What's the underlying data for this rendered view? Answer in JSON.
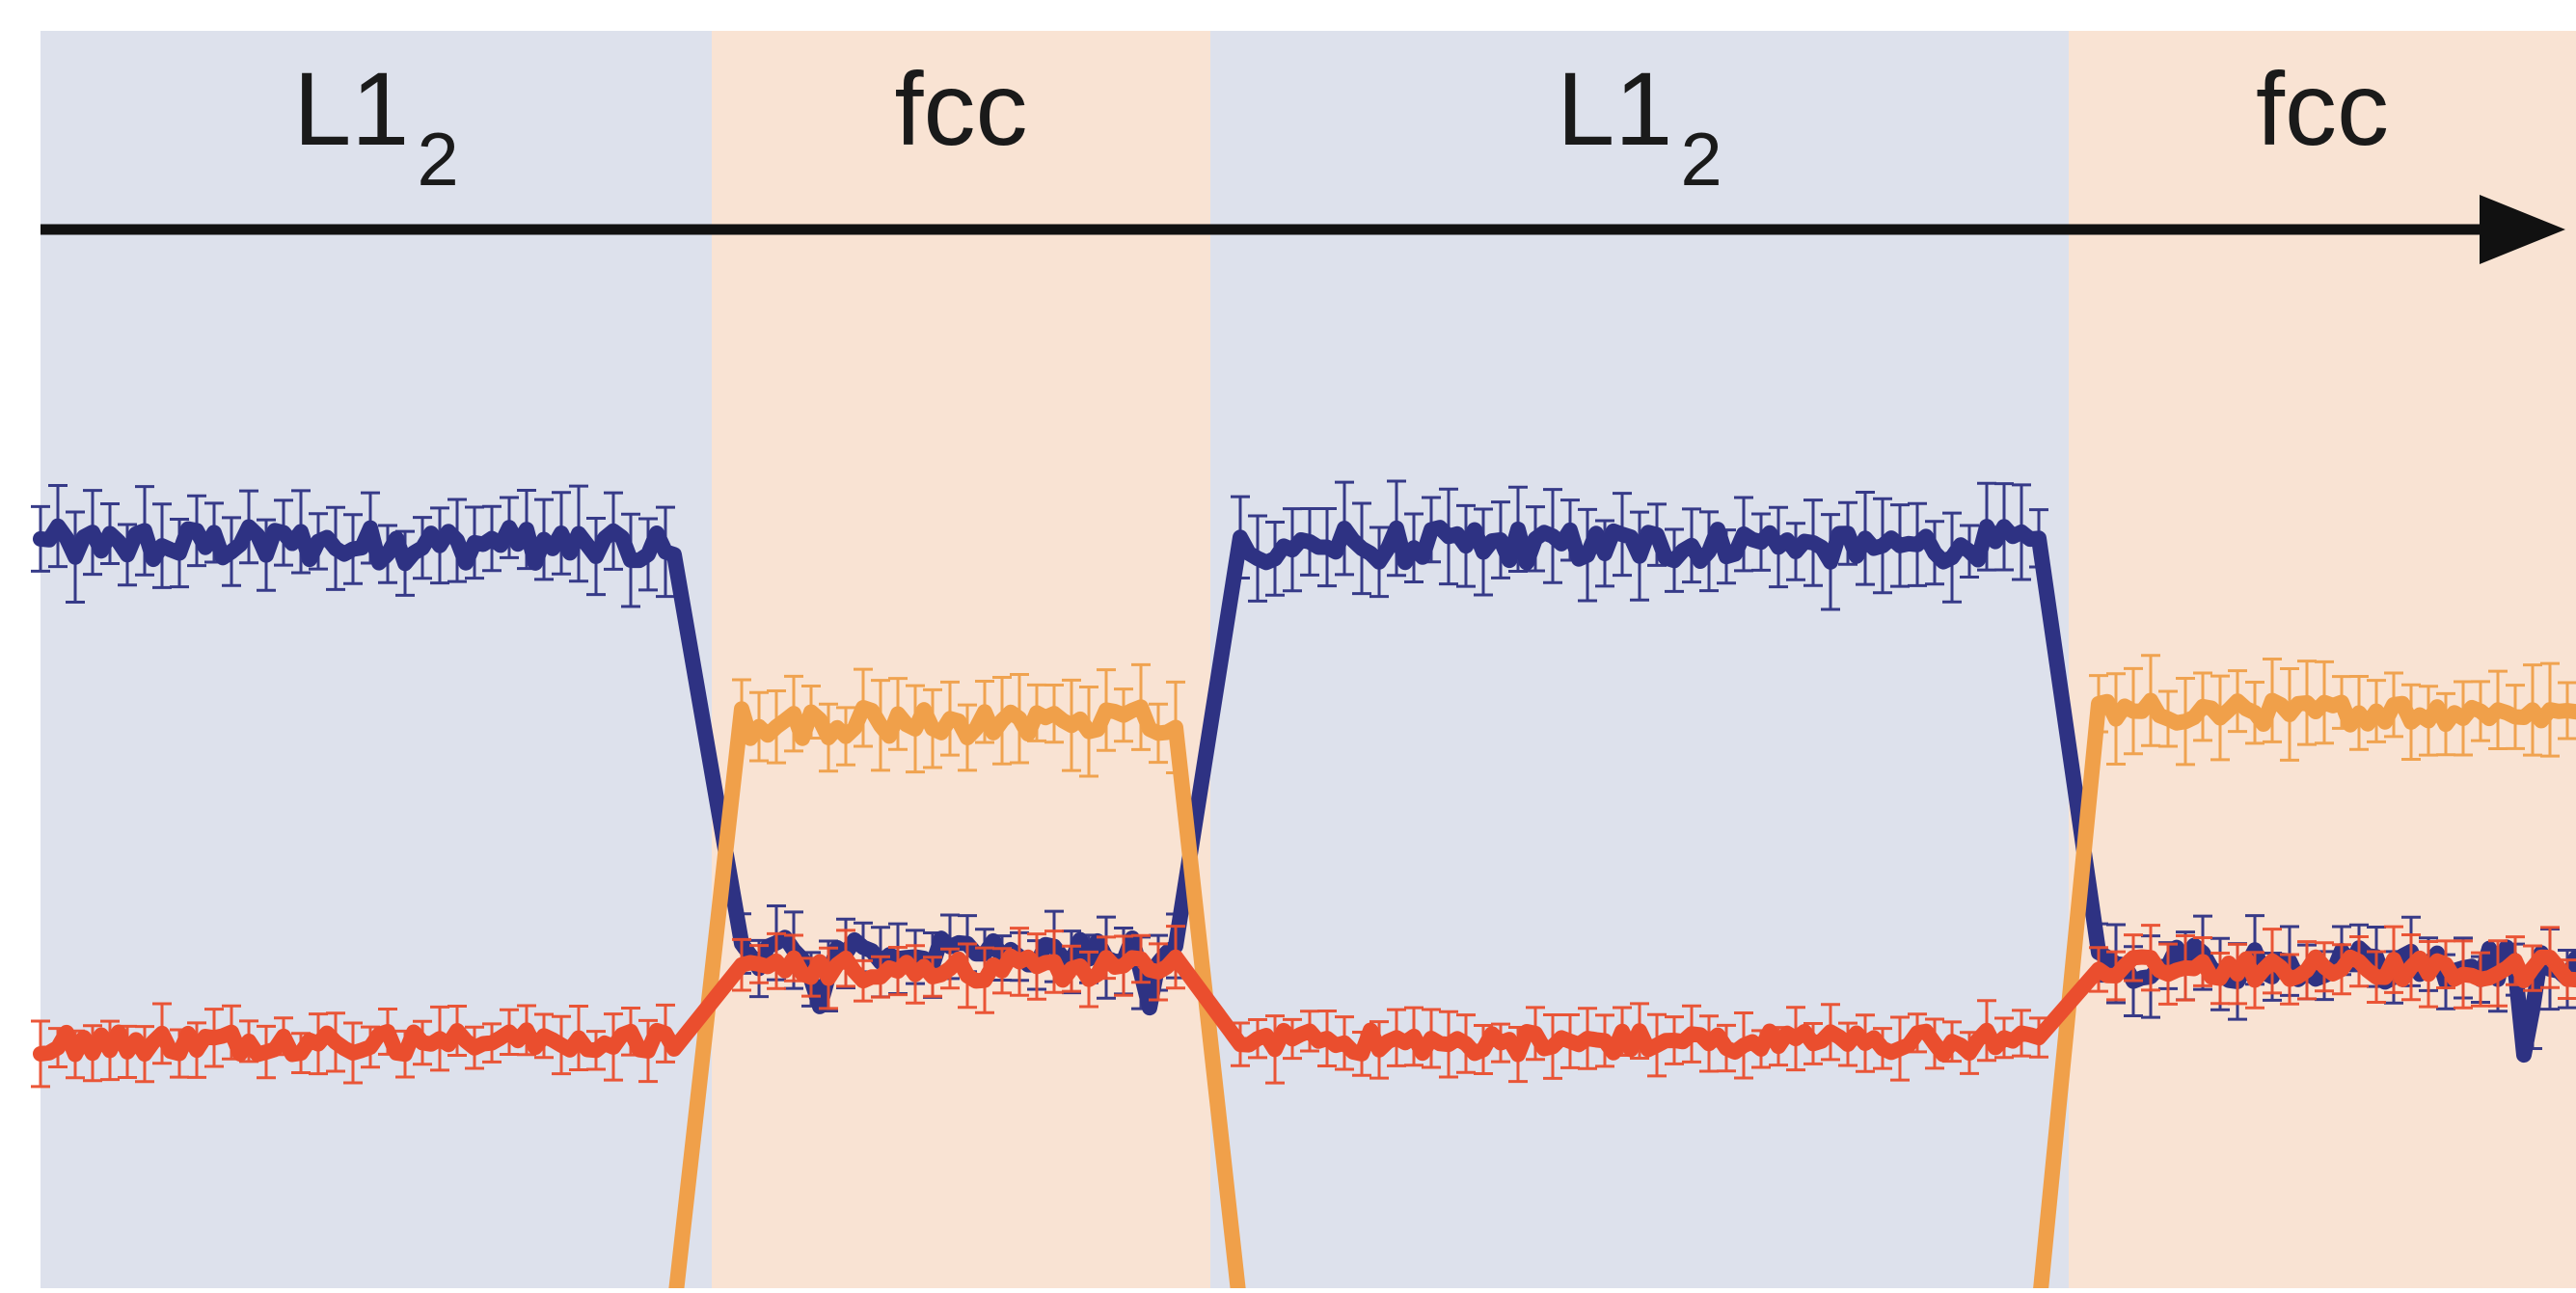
{
  "chart_data": {
    "type": "line",
    "title": "",
    "xlabel": "",
    "ylabel": "",
    "axis_ticks": "none",
    "grid": false,
    "legend": "none",
    "time_arrow": true,
    "phases": [
      {
        "label": "L1",
        "subscript": "2",
        "color": "#dde1ec"
      },
      {
        "label": "fcc",
        "subscript": "",
        "color": "#f9e3d3"
      },
      {
        "label": "L1",
        "subscript": "2",
        "color": "#dde1ec"
      },
      {
        "label": "fcc",
        "subscript": "",
        "color": "#f9e3d3"
      }
    ],
    "series": [
      {
        "color": "#2e3283",
        "segments": [
          {
            "phase": 0,
            "level": 0.71,
            "noise": 0.018,
            "error": 0.035
          },
          {
            "phase": 1,
            "level": 0.32,
            "noise": 0.015,
            "error": 0.03
          },
          {
            "phase": 2,
            "level": 0.71,
            "noise": 0.018,
            "error": 0.035
          },
          {
            "phase": 3,
            "level": 0.31,
            "noise": 0.018,
            "error": 0.03
          }
        ],
        "dips": [
          {
            "phase": 1,
            "at": 0.22,
            "depth": 0.06
          },
          {
            "phase": 1,
            "at": 0.88,
            "depth": 0.05
          },
          {
            "phase": 3,
            "at": 0.02,
            "depth": 0.14
          },
          {
            "phase": 3,
            "at": 0.9,
            "depth": 0.08
          }
        ]
      },
      {
        "color": "#f0a04a",
        "segments": [
          {
            "phase": 0,
            "level": -0.02,
            "noise": 0.0,
            "error": 0.0
          },
          {
            "phase": 1,
            "level": 0.54,
            "noise": 0.015,
            "error": 0.035
          },
          {
            "phase": 2,
            "level": -0.02,
            "noise": 0.0,
            "error": 0.0
          },
          {
            "phase": 3,
            "level": 0.55,
            "noise": 0.012,
            "error": 0.035
          }
        ]
      },
      {
        "color": "#ea4e2e",
        "segments": [
          {
            "phase": 0,
            "level": 0.235,
            "noise": 0.012,
            "error": 0.025
          },
          {
            "phase": 1,
            "level": 0.305,
            "noise": 0.012,
            "error": 0.025
          },
          {
            "phase": 2,
            "level": 0.235,
            "noise": 0.012,
            "error": 0.025
          },
          {
            "phase": 3,
            "level": 0.305,
            "noise": 0.012,
            "error": 0.025
          }
        ]
      }
    ]
  }
}
